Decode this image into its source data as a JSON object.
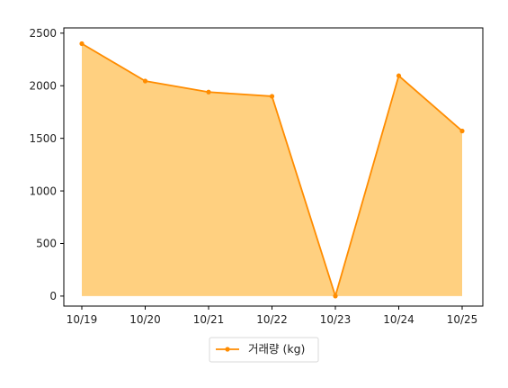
{
  "chart_data": {
    "type": "area",
    "categories": [
      "10/19",
      "10/20",
      "10/21",
      "10/22",
      "10/23",
      "10/24",
      "10/25"
    ],
    "series": [
      {
        "name": "거래량 (kg)",
        "values": [
          2400,
          2045,
          1940,
          1900,
          0,
          2095,
          1570
        ]
      }
    ],
    "title": "",
    "xlabel": "",
    "ylabel": "",
    "ylim": [
      -95,
      2550
    ],
    "yticks": [
      0,
      500,
      1000,
      1500,
      2000,
      2500
    ],
    "grid": false,
    "legend_position": "bottom-center",
    "colors": {
      "line": "#ff8c00",
      "fill": "#ffd080",
      "axis": "#000000"
    }
  }
}
